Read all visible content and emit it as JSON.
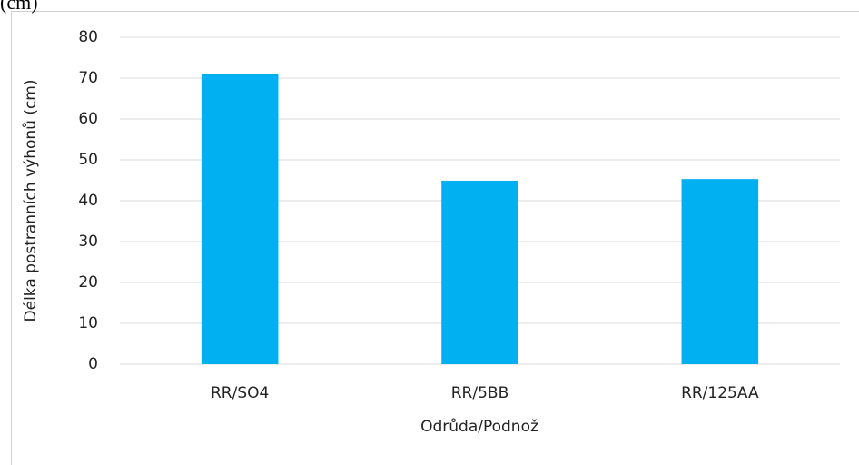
{
  "header_text": "(cm)",
  "chart_data": {
    "type": "bar",
    "categories": [
      "RR/SO4",
      "RR/5BB",
      "RR/125AA"
    ],
    "values": [
      71,
      44.9,
      45.3
    ],
    "color": "#00b0f0",
    "xlabel": "Odrůda/Podnož",
    "ylabel": "Délka postranních výhonů (cm)",
    "ylim": [
      0,
      80
    ],
    "yticks": [
      0,
      10,
      20,
      30,
      40,
      50,
      60,
      70,
      80
    ],
    "grid": true
  }
}
